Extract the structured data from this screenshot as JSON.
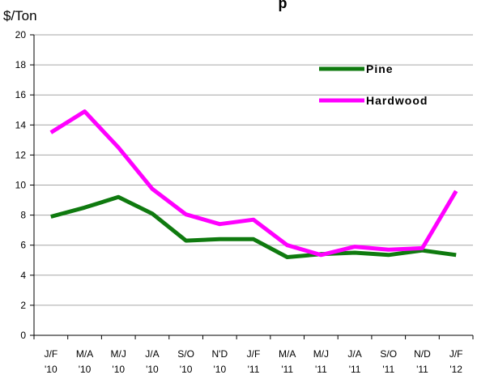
{
  "chart_data": {
    "type": "line",
    "title_fragment": "p",
    "ylabel": "$/Ton",
    "ylim": [
      0,
      20
    ],
    "yticks": [
      0,
      2,
      4,
      6,
      8,
      10,
      12,
      14,
      16,
      18,
      20
    ],
    "categories": [
      {
        "top": "J/F",
        "bottom": "'10"
      },
      {
        "top": "M/A",
        "bottom": "'10"
      },
      {
        "top": "M/J",
        "bottom": "'10"
      },
      {
        "top": "J/A",
        "bottom": "'10"
      },
      {
        "top": "S/O",
        "bottom": "'10"
      },
      {
        "top": "N'D",
        "bottom": "'10"
      },
      {
        "top": "J/F",
        "bottom": "'11"
      },
      {
        "top": "M/A",
        "bottom": "'11"
      },
      {
        "top": "M/J",
        "bottom": "'11"
      },
      {
        "top": "J/A",
        "bottom": "'11"
      },
      {
        "top": "S/O",
        "bottom": "'11"
      },
      {
        "top": "N/D",
        "bottom": "'11"
      },
      {
        "top": "J/F",
        "bottom": "'12"
      }
    ],
    "series": [
      {
        "name": "Pine",
        "color": "#0f7a0f",
        "values": [
          7.9,
          8.5,
          9.2,
          8.1,
          6.3,
          6.4,
          6.4,
          5.2,
          5.4,
          5.5,
          5.35,
          5.65,
          5.35
        ]
      },
      {
        "name": "Hardwood",
        "color": "#ff00ff",
        "values": [
          13.5,
          14.9,
          12.5,
          9.75,
          8.05,
          7.4,
          7.7,
          6.0,
          5.35,
          5.9,
          5.7,
          5.8,
          9.6
        ]
      }
    ],
    "grid": true,
    "legend_position": "top-right"
  }
}
